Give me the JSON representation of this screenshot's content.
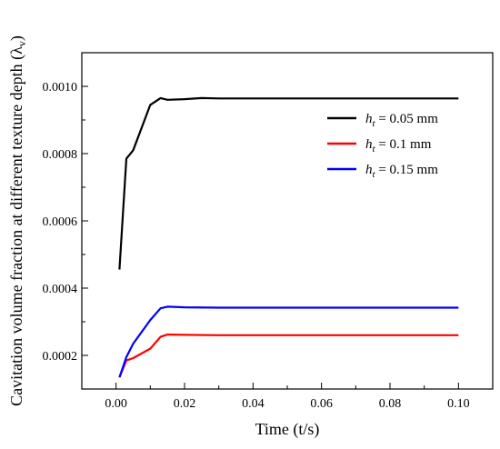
{
  "chart_data": {
    "type": "line",
    "xlabel": "Time (t/s)",
    "ylabel": "Cavitation volume fraction at different texture depth (λ",
    "ylabel_sub": "v",
    "ylabel_close": ")",
    "xlim": [
      -0.01,
      0.11
    ],
    "ylim": [
      0.0001,
      0.0011
    ],
    "x_ticks": [
      0.0,
      0.02,
      0.04,
      0.06,
      0.08,
      0.1
    ],
    "x_tick_labels": [
      "0.00",
      "0.02",
      "0.04",
      "0.06",
      "0.08",
      "0.10"
    ],
    "y_ticks": [
      0.0002,
      0.0004,
      0.0006,
      0.0008,
      0.001
    ],
    "y_tick_labels": [
      "0.0002",
      "0.0004",
      "0.0006",
      "0.0008",
      "0.0010"
    ],
    "grid": false,
    "legend_position": "top-right",
    "series": [
      {
        "name_main": "h",
        "name_sub": "t",
        "name_rest": " = 0.05 mm",
        "color": "#000000",
        "x": [
          0.001,
          0.003,
          0.005,
          0.01,
          0.013,
          0.015,
          0.02,
          0.025,
          0.03,
          0.04,
          0.05,
          0.06,
          0.07,
          0.08,
          0.09,
          0.1
        ],
        "y": [
          0.000455,
          0.000785,
          0.00081,
          0.000945,
          0.000965,
          0.00096,
          0.000962,
          0.000965,
          0.000964,
          0.000964,
          0.000964,
          0.000964,
          0.000964,
          0.000964,
          0.000964,
          0.000964
        ]
      },
      {
        "name_main": "h",
        "name_sub": "t",
        "name_rest": " = 0.1 mm",
        "color": "#ff0000",
        "x": [
          0.001,
          0.003,
          0.005,
          0.01,
          0.013,
          0.015,
          0.02,
          0.03,
          0.04,
          0.05,
          0.06,
          0.07,
          0.08,
          0.09,
          0.1
        ],
        "y": [
          0.000135,
          0.000185,
          0.000192,
          0.00022,
          0.000255,
          0.000262,
          0.000261,
          0.00026,
          0.00026,
          0.00026,
          0.00026,
          0.00026,
          0.00026,
          0.00026,
          0.00026
        ]
      },
      {
        "name_main": "h",
        "name_sub": "t",
        "name_rest": " = 0.15 mm",
        "color": "#0000ff",
        "x": [
          0.001,
          0.003,
          0.005,
          0.01,
          0.013,
          0.015,
          0.02,
          0.03,
          0.04,
          0.05,
          0.06,
          0.07,
          0.08,
          0.09,
          0.1
        ],
        "y": [
          0.000135,
          0.000195,
          0.000235,
          0.000305,
          0.00034,
          0.000345,
          0.000343,
          0.000342,
          0.000342,
          0.000342,
          0.000342,
          0.000342,
          0.000342,
          0.000342,
          0.000342
        ]
      }
    ]
  }
}
